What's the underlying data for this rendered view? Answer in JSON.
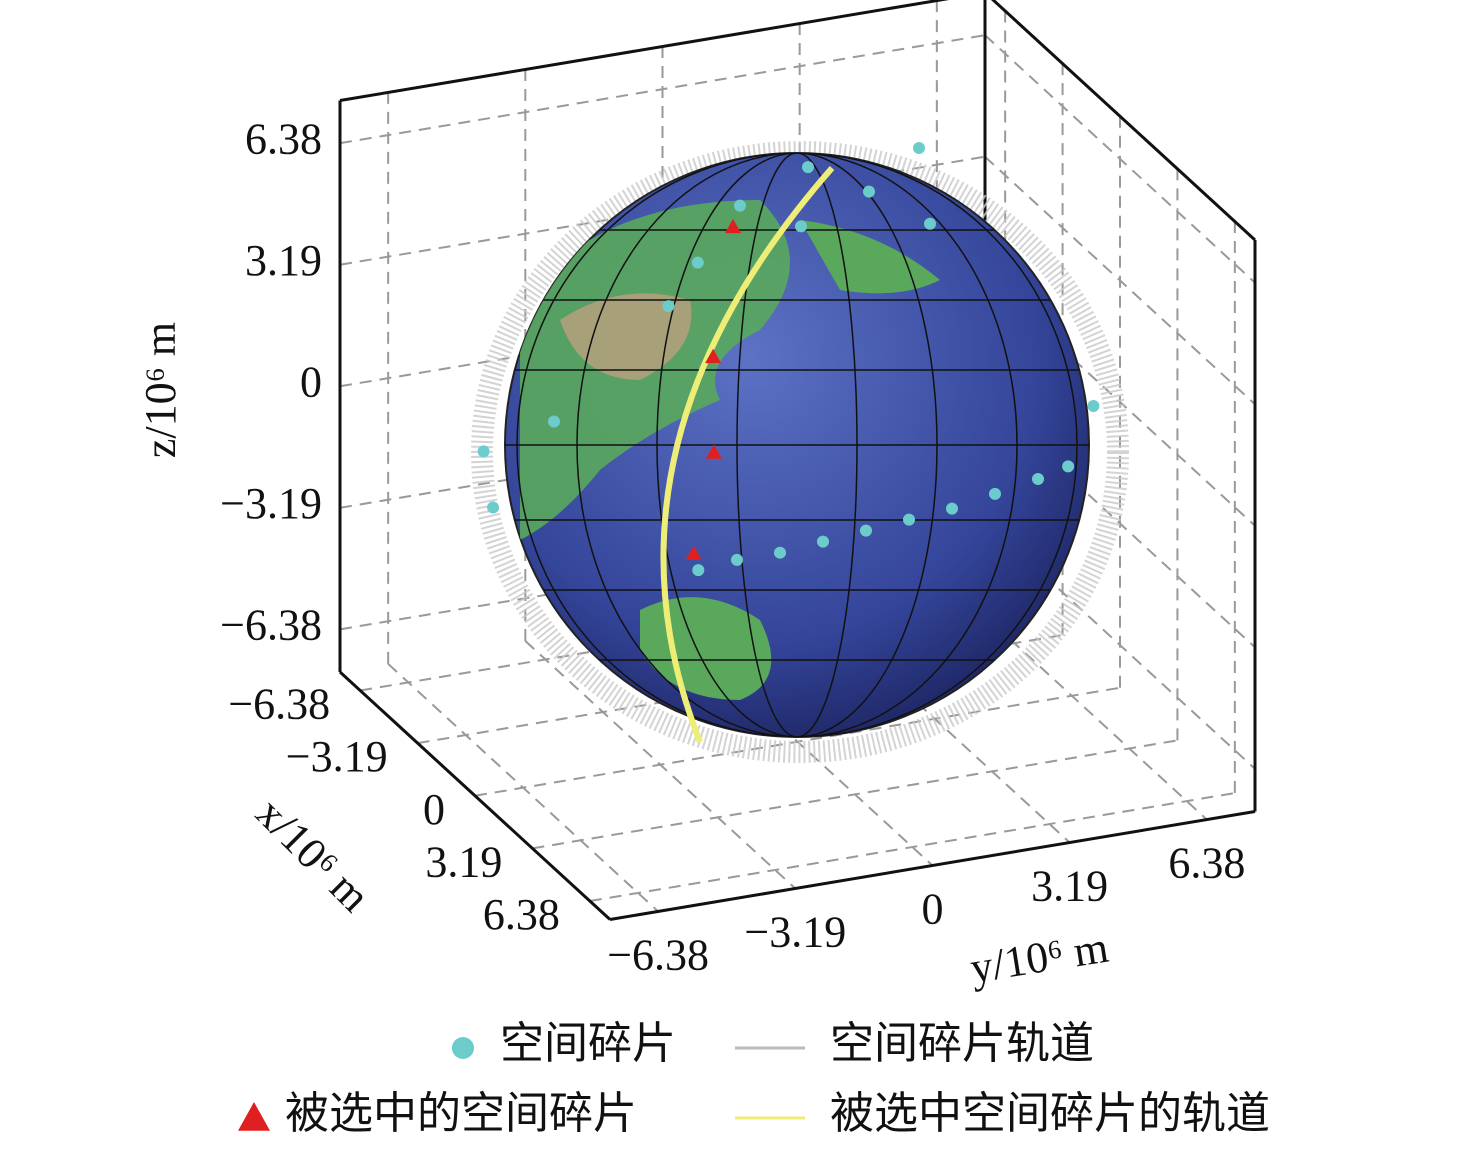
{
  "chart_data": {
    "type": "scatter3d",
    "xlabel": "x/10⁶ m",
    "ylabel": "y/10⁶ m",
    "zlabel": "z/10⁶ m",
    "xlim": [
      -7.5,
      7.5
    ],
    "ylim": [
      -7.5,
      7.5
    ],
    "zlim": [
      -7.5,
      7.5
    ],
    "xticks": [
      {
        "value": -6.38,
        "label": "−6.38"
      },
      {
        "value": -3.19,
        "label": "−3.19"
      },
      0,
      3.19,
      6.38
    ],
    "yticks": [
      {
        "value": -6.38,
        "label": "−6.38"
      },
      {
        "value": -3.19,
        "label": "−3.19"
      },
      0,
      3.19,
      6.38
    ],
    "zticks": [
      {
        "value": -6.38,
        "label": "−6.38"
      },
      {
        "value": -3.19,
        "label": "−3.19"
      },
      0,
      3.19,
      6.38
    ],
    "grid": true,
    "series": [
      {
        "name": "空间碎片",
        "color": "#6ccccc",
        "marker": "circle",
        "x": [
          5,
          5,
          5,
          5,
          5,
          5,
          5,
          5,
          5,
          5,
          -1,
          -2,
          -1,
          -3,
          -2,
          -1,
          0,
          1,
          0,
          -1,
          2,
          -4
        ],
        "y": [
          -4.4,
          -3.5,
          -2.5,
          -1.5,
          -0.5,
          0.5,
          1.5,
          2.5,
          3.5,
          4.2,
          -1.9,
          -0.5,
          0.5,
          1.5,
          2.5,
          3.5,
          -3,
          -7.5,
          -7.3,
          7.3,
          -6.5,
          4.5
        ],
        "values": [
          0,
          0.1,
          0.1,
          0.2,
          0.3,
          0.4,
          0.5,
          0.7,
          0.9,
          1.1,
          5,
          5.8,
          5.5,
          6,
          5.6,
          5,
          4.5,
          0.5,
          1.5,
          -0.5,
          3,
          5.5
        ]
      },
      {
        "name": "空间碎片轨道",
        "color": "#bbbbbb",
        "marker": "line"
      },
      {
        "name": "被选中的空间碎片",
        "color": "#e02020",
        "marker": "triangle",
        "x": [
          0,
          2,
          3,
          4.5
        ],
        "y": [
          -1.5,
          -2.8,
          -3.2,
          -4.3
        ],
        "values": [
          6.3,
          4,
          2,
          0.2
        ]
      },
      {
        "name": "被选中空间碎片的轨道",
        "color": "#eeee77",
        "marker": "line"
      }
    ]
  }
}
